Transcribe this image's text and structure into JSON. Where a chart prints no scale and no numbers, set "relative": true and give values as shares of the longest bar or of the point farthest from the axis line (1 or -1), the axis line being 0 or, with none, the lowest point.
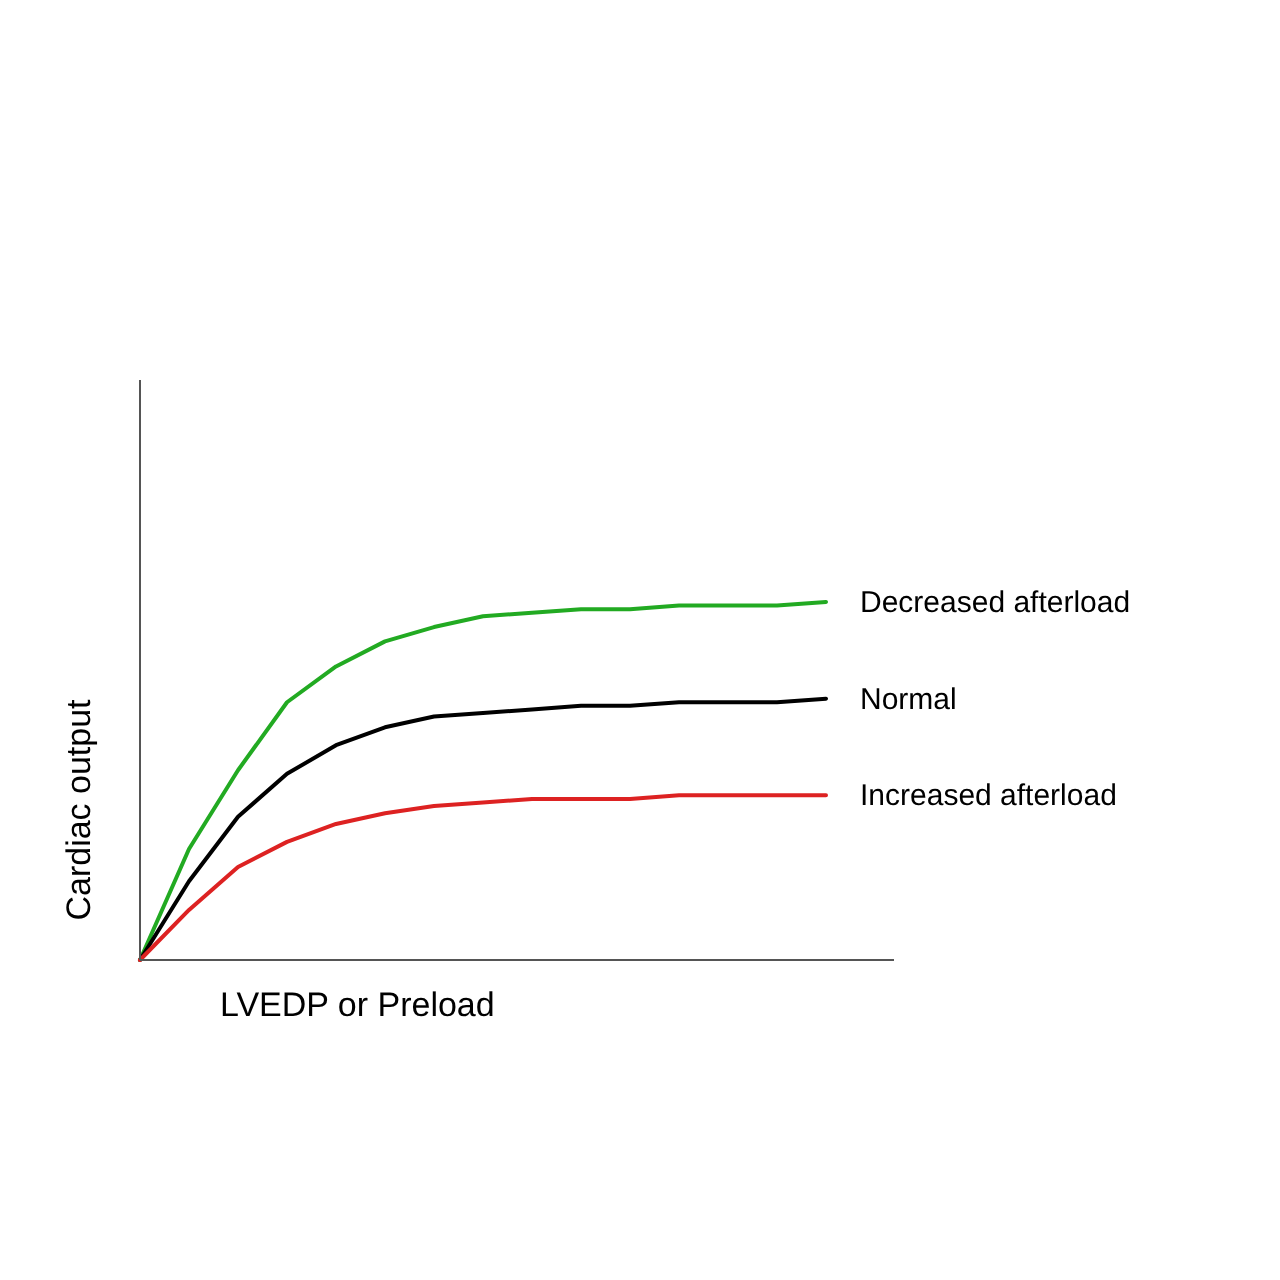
{
  "chart_data": {
    "type": "line",
    "relative": true,
    "xlabel": "LVEDP or Preload",
    "ylabel": "Cardiac output",
    "marker": "none",
    "categories": [
      null,
      null,
      null,
      null,
      null,
      null,
      null,
      null,
      null,
      null,
      null,
      null,
      null,
      null,
      null
    ],
    "series": [
      {
        "name": "Decreased afterload",
        "color": "#22aa22",
        "values": [
          0,
          0.31,
          0.53,
          0.72,
          0.82,
          0.89,
          0.93,
          0.96,
          0.97,
          0.98,
          0.98,
          0.99,
          0.99,
          0.99,
          1
        ]
      },
      {
        "name": "Normal",
        "color": "#000000",
        "values": [
          0,
          0.22,
          0.4,
          0.52,
          0.6,
          0.65,
          0.68,
          0.69,
          0.7,
          0.71,
          0.71,
          0.72,
          0.72,
          0.72,
          0.73
        ]
      },
      {
        "name": "Increased afterload",
        "color": "#dd2222",
        "values": [
          0,
          0.14,
          0.26,
          0.33,
          0.38,
          0.41,
          0.43,
          0.44,
          0.45,
          0.45,
          0.45,
          0.46,
          0.46,
          0.46,
          0.46
        ]
      }
    ]
  }
}
